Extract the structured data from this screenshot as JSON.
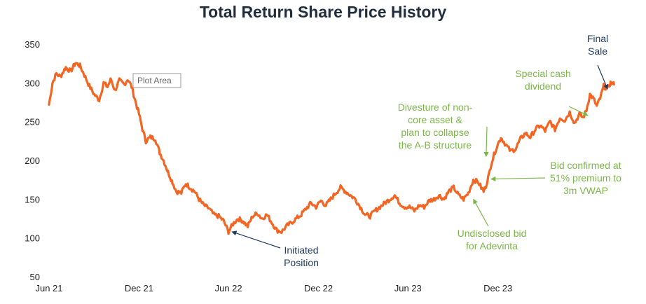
{
  "title": "Total Return Share Price History",
  "tooltip": "Plot Area",
  "colors": {
    "line": "#f26522",
    "green": "#7ab648",
    "navy": "#1f3a5f"
  },
  "chart_data": {
    "type": "line",
    "title": "Total Return Share Price History",
    "xlabel": "",
    "ylabel": "",
    "ylim": [
      50,
      350
    ],
    "yticks": [
      50,
      100,
      150,
      200,
      250,
      300,
      350
    ],
    "xlim": [
      "2021-06-01",
      "2024-07-25"
    ],
    "xticks": [
      {
        "date": "2021-06-01",
        "label": "Jun 21"
      },
      {
        "date": "2021-12-01",
        "label": "Dec 21"
      },
      {
        "date": "2022-06-01",
        "label": "Jun 22"
      },
      {
        "date": "2022-12-01",
        "label": "Dec 22"
      },
      {
        "date": "2023-06-01",
        "label": "Jun 23"
      },
      {
        "date": "2023-12-01",
        "label": "Dec 23"
      }
    ],
    "grid": false,
    "legend": "none",
    "series": [
      {
        "x": [
          "2021-06-01",
          "2021-06-08",
          "2021-06-16",
          "2021-06-24",
          "2021-07-05",
          "2021-07-15",
          "2021-07-25",
          "2021-08-03",
          "2021-08-12",
          "2021-08-22",
          "2021-09-01",
          "2021-09-11",
          "2021-09-20",
          "2021-09-28",
          "2021-10-05",
          "2021-10-13",
          "2021-10-22",
          "2021-11-01",
          "2021-11-08",
          "2021-11-16",
          "2021-11-23",
          "2021-12-01",
          "2021-12-08",
          "2021-12-15",
          "2021-12-24",
          "2022-01-03",
          "2022-01-12",
          "2022-01-20",
          "2022-01-29",
          "2022-02-07",
          "2022-02-15",
          "2022-02-25",
          "2022-03-06",
          "2022-03-15",
          "2022-03-24",
          "2022-04-02",
          "2022-04-12",
          "2022-04-22",
          "2022-05-02",
          "2022-05-12",
          "2022-05-22",
          "2022-06-01",
          "2022-06-10",
          "2022-06-20",
          "2022-06-30",
          "2022-07-10",
          "2022-07-20",
          "2022-07-30",
          "2022-08-08",
          "2022-08-18",
          "2022-08-28",
          "2022-09-07",
          "2022-09-17",
          "2022-09-27",
          "2022-10-07",
          "2022-10-17",
          "2022-10-27",
          "2022-11-06",
          "2022-11-16",
          "2022-11-26",
          "2022-12-06",
          "2022-12-16",
          "2022-12-26",
          "2023-01-05",
          "2023-01-15",
          "2023-01-25",
          "2023-02-04",
          "2023-02-14",
          "2023-02-24",
          "2023-03-06",
          "2023-03-16",
          "2023-03-26",
          "2023-04-05",
          "2023-04-15",
          "2023-04-25",
          "2023-05-05",
          "2023-05-15",
          "2023-05-25",
          "2023-06-04",
          "2023-06-14",
          "2023-06-24",
          "2023-07-04",
          "2023-07-14",
          "2023-07-24",
          "2023-08-03",
          "2023-08-13",
          "2023-08-23",
          "2023-09-02",
          "2023-09-12",
          "2023-09-22",
          "2023-10-02",
          "2023-10-12",
          "2023-10-22",
          "2023-10-28",
          "2023-11-02",
          "2023-11-07",
          "2023-11-12",
          "2023-11-17",
          "2023-11-27",
          "2023-12-07",
          "2023-12-17",
          "2023-12-27",
          "2024-01-06",
          "2024-01-16",
          "2024-01-26",
          "2024-02-05",
          "2024-02-15",
          "2024-02-25",
          "2024-03-06",
          "2024-03-16",
          "2024-03-26",
          "2024-04-05",
          "2024-04-15",
          "2024-04-25",
          "2024-05-05",
          "2024-05-15",
          "2024-05-22",
          "2024-05-29",
          "2024-06-05",
          "2024-06-12",
          "2024-06-19",
          "2024-06-26",
          "2024-07-03",
          "2024-07-10",
          "2024-07-17",
          "2024-07-24"
        ],
        "y": [
          272,
          300,
          312,
          308,
          320,
          315,
          326,
          322,
          310,
          296,
          285,
          278,
          300,
          295,
          305,
          290,
          303,
          298,
          305,
          295,
          278,
          260,
          240,
          225,
          230,
          228,
          210,
          200,
          185,
          172,
          160,
          158,
          170,
          165,
          160,
          150,
          142,
          138,
          130,
          128,
          122,
          108,
          118,
          125,
          122,
          115,
          128,
          132,
          125,
          130,
          120,
          110,
          108,
          115,
          120,
          125,
          130,
          138,
          145,
          140,
          148,
          142,
          150,
          158,
          165,
          160,
          155,
          150,
          140,
          130,
          128,
          135,
          140,
          145,
          150,
          155,
          145,
          140,
          140,
          135,
          142,
          140,
          148,
          150,
          155,
          150,
          160,
          165,
          155,
          150,
          158,
          175,
          172,
          165,
          160,
          168,
          180,
          195,
          215,
          230,
          220,
          212,
          215,
          228,
          235,
          230,
          240,
          245,
          238,
          250,
          240,
          255,
          252,
          262,
          248,
          260,
          255,
          265,
          285,
          280,
          270,
          280,
          296,
          292,
          300,
          298
        ]
      }
    ],
    "annotations": [
      {
        "lines": [
          "Initiated",
          "Position"
        ],
        "color": "navy",
        "point": {
          "date": "2022-06-08",
          "value": 108
        }
      },
      {
        "lines": [
          "Undisclosed bid",
          "for Adevinta"
        ],
        "color": "green",
        "point": {
          "date": "2023-10-12",
          "value": 150
        }
      },
      {
        "lines": [
          "Divesture of non-",
          "core asset &",
          "plan to collapse",
          "the A-B structure"
        ],
        "color": "green",
        "point": {
          "date": "2023-11-07",
          "value": 205
        }
      },
      {
        "lines": [
          "Bid confirmed at",
          "51% premium to",
          "3m VWAP"
        ],
        "color": "green",
        "point": {
          "date": "2023-11-17",
          "value": 176
        }
      },
      {
        "lines": [
          "Special cash",
          "dividend"
        ],
        "color": "green",
        "point": {
          "date": "2024-06-01",
          "value": 258
        }
      },
      {
        "lines": [
          "Final",
          "Sale"
        ],
        "color": "navy",
        "point": {
          "date": "2024-07-11",
          "value": 292
        }
      }
    ]
  }
}
